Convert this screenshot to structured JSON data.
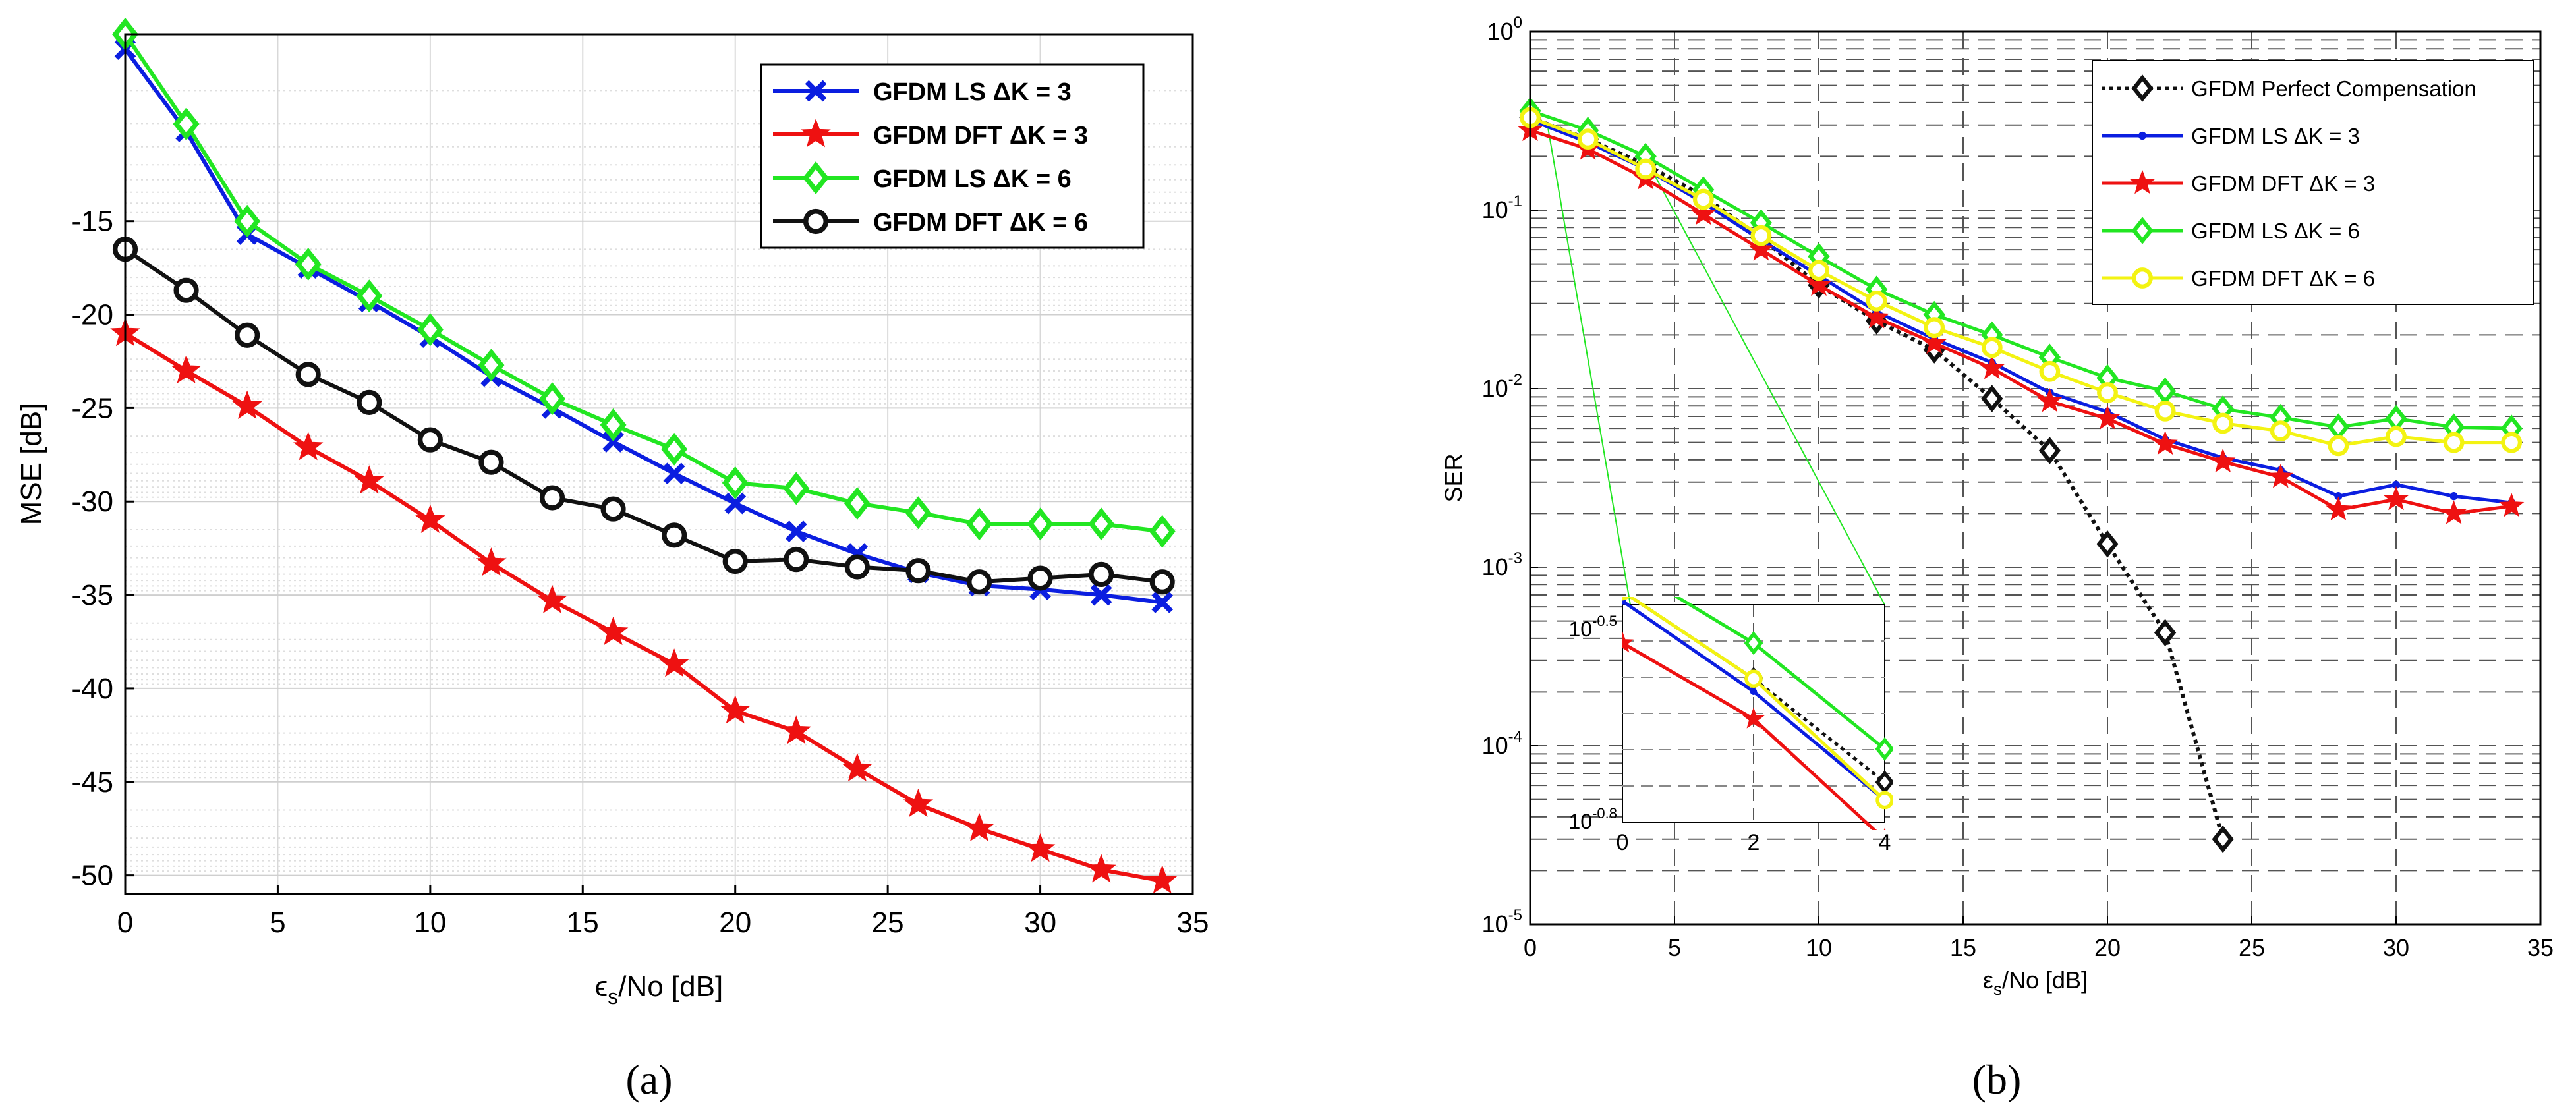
{
  "chart_data": [
    {
      "type": "line",
      "panel_label": "(a)",
      "xlabel": "ε_s/No [dB]",
      "ylabel": "MSE [dB]",
      "xlim": [
        0,
        35
      ],
      "ylim": [
        -51,
        -5
      ],
      "x_ticks": [
        "0",
        "5",
        "10",
        "15",
        "20",
        "25",
        "30",
        "35"
      ],
      "y_ticks": [
        "-15",
        "-20",
        "-25",
        "-30",
        "-35",
        "-40",
        "-45",
        "-50"
      ],
      "grid": true,
      "legend_position": "top-right",
      "x": [
        0,
        2,
        4,
        6,
        8,
        10,
        12,
        14,
        16,
        18,
        20,
        22,
        24,
        26,
        28,
        30,
        32,
        34
      ],
      "series": [
        {
          "name": "GFDM LS ΔK = 3",
          "color": "#0b1ee0",
          "marker": "x",
          "values": [
            -5.8,
            -10.2,
            -15.7,
            -17.5,
            -19.3,
            -21.2,
            -23.3,
            -25.0,
            -26.8,
            -28.5,
            -30.1,
            -31.6,
            -32.8,
            -33.8,
            -34.5,
            -34.7,
            -35.0,
            -35.4
          ]
        },
        {
          "name": "GFDM DFT ΔK = 3",
          "color": "#ee1111",
          "marker": "star",
          "values": [
            -21.0,
            -23.0,
            -24.9,
            -27.1,
            -28.9,
            -31.0,
            -33.3,
            -35.3,
            -37.0,
            -38.7,
            -41.2,
            -42.3,
            -44.3,
            -46.2,
            -47.5,
            -48.6,
            -49.7,
            -50.3
          ]
        },
        {
          "name": "GFDM LS ΔK = 6",
          "color": "#22e622",
          "marker": "diamond",
          "values": [
            -5.0,
            -9.8,
            -15.0,
            -17.3,
            -19.0,
            -20.8,
            -22.7,
            -24.5,
            -25.9,
            -27.2,
            -29.0,
            -29.3,
            -30.1,
            -30.6,
            -31.2,
            -31.2,
            -31.2,
            -31.6
          ]
        },
        {
          "name": "GFDM DFT ΔK = 6",
          "color": "#111111",
          "marker": "circle",
          "values": [
            -16.5,
            -18.7,
            -21.1,
            -23.2,
            -24.7,
            -26.7,
            -27.9,
            -29.8,
            -30.4,
            -31.8,
            -33.2,
            -33.1,
            -33.5,
            -33.7,
            -34.3,
            -34.1,
            -33.9,
            -34.3
          ]
        }
      ]
    },
    {
      "type": "line",
      "panel_label": "(b)",
      "xlabel": "ε_s/No [dB]",
      "ylabel": "SER",
      "xlim": [
        0,
        35
      ],
      "ylim": [
        1e-05,
        1
      ],
      "yscale": "log",
      "x_ticks": [
        "0",
        "5",
        "10",
        "15",
        "20",
        "25",
        "30",
        "35"
      ],
      "y_ticks": [
        "10^0",
        "10^-1",
        "10^-2",
        "10^-3",
        "10^-4",
        "10^-5"
      ],
      "grid": true,
      "legend_position": "top-right",
      "x": [
        0,
        2,
        4,
        6,
        8,
        10,
        12,
        14,
        16,
        18,
        20,
        22,
        24,
        26,
        28,
        30,
        32,
        34
      ],
      "series": [
        {
          "name": "GFDM Perfect Compensation",
          "color": "#111111",
          "marker": "diamond",
          "dash": "dotted",
          "x": [
            0,
            2,
            4,
            6,
            8,
            10,
            12,
            14,
            16,
            18,
            20,
            22,
            24
          ],
          "values": [
            0.33,
            0.25,
            0.18,
            0.12,
            0.07,
            0.038,
            0.024,
            0.0165,
            0.0088,
            0.0045,
            0.00135,
            0.00043,
            3e-05
          ]
        },
        {
          "name": "GFDM LS ΔK = 3",
          "color": "#0b1ee0",
          "marker": "dot",
          "values": [
            0.32,
            0.24,
            0.17,
            0.11,
            0.068,
            0.043,
            0.027,
            0.019,
            0.014,
            0.0095,
            0.0074,
            0.0052,
            0.0041,
            0.0035,
            0.0025,
            0.0029,
            0.0025,
            0.0023
          ]
        },
        {
          "name": "GFDM DFT ΔK = 3",
          "color": "#ee1111",
          "marker": "star",
          "values": [
            0.28,
            0.22,
            0.15,
            0.095,
            0.06,
            0.038,
            0.025,
            0.018,
            0.013,
            0.0085,
            0.0068,
            0.0049,
            0.0039,
            0.0032,
            0.0021,
            0.0024,
            0.002,
            0.0022
          ]
        },
        {
          "name": "GFDM LS ΔK = 6",
          "color": "#22e622",
          "marker": "diamond",
          "values": [
            0.36,
            0.28,
            0.2,
            0.13,
            0.085,
            0.055,
            0.036,
            0.026,
            0.02,
            0.015,
            0.0115,
            0.0097,
            0.0077,
            0.0069,
            0.0061,
            0.0068,
            0.0061,
            0.006
          ]
        },
        {
          "name": "GFDM DFT ΔK = 6",
          "color": "#f3f312",
          "marker": "circle",
          "values": [
            0.33,
            0.25,
            0.17,
            0.115,
            0.072,
            0.046,
            0.031,
            0.022,
            0.017,
            0.0125,
            0.0095,
            0.0075,
            0.0064,
            0.0058,
            0.0048,
            0.0054,
            0.005,
            0.005
          ]
        }
      ],
      "inset": {
        "xlim": [
          0,
          4
        ],
        "ylim_log10": [
          -0.8,
          -0.5
        ],
        "x_ticks": [
          "0",
          "2",
          "4"
        ],
        "y_tick_base": "10",
        "y_tick_top_exp": "-0.5",
        "y_tick_bottom_exp": "-0.8"
      }
    }
  ]
}
